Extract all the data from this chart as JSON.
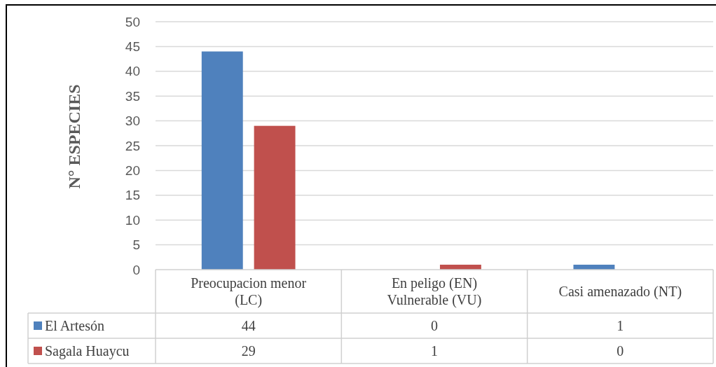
{
  "chart_data": {
    "type": "bar",
    "categories": [
      "Preocupacion menor (LC)",
      "En peligo (EN) Vulnerable (VU)",
      "Casi amenazado (NT)"
    ],
    "series": [
      {
        "name": "El Artesón",
        "color": "#4f81bd",
        "values": [
          44,
          0,
          1
        ]
      },
      {
        "name": "Sagala Huaycu",
        "color": "#c0504d",
        "values": [
          29,
          1,
          0
        ]
      }
    ],
    "ylabel": "N° ESPECIES",
    "ylim": [
      0,
      50
    ],
    "yticks": [
      0,
      5,
      10,
      15,
      20,
      25,
      30,
      35,
      40,
      45,
      50
    ],
    "grid": "y",
    "legend": "bottom",
    "data_labels": true
  }
}
